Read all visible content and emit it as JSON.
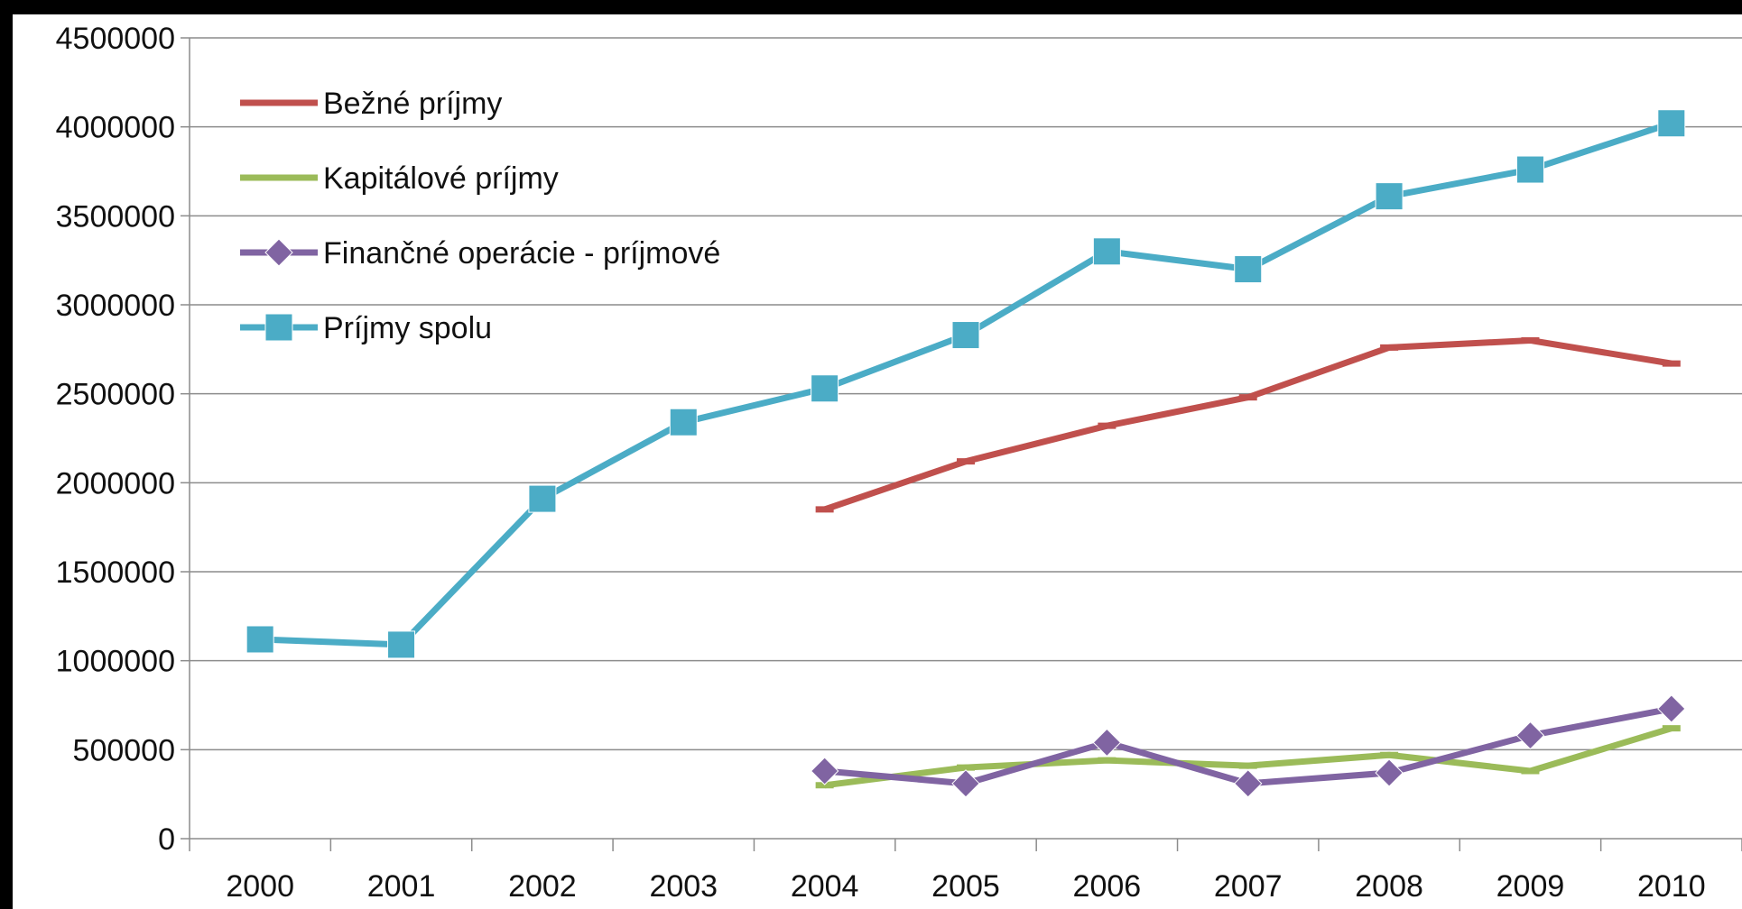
{
  "chart_data": {
    "type": "line",
    "title": "",
    "xlabel": "",
    "ylabel": "",
    "categories": [
      "2000",
      "2001",
      "2002",
      "2003",
      "2004",
      "2005",
      "2006",
      "2007",
      "2008",
      "2009",
      "2010"
    ],
    "ylim": [
      0,
      4500000
    ],
    "yticks": [
      0,
      500000,
      1000000,
      1500000,
      2000000,
      2500000,
      3000000,
      3500000,
      4000000,
      4500000
    ],
    "ytick_labels": [
      "0",
      "500000",
      "1000000",
      "1500000",
      "2000000",
      "2500000",
      "3000000",
      "3500000",
      "4000000",
      "4500000"
    ],
    "grid": true,
    "legend_position": "top-left",
    "series": [
      {
        "name": "Bežné príjmy",
        "color": "#C0504D",
        "marker": "none",
        "values": [
          null,
          null,
          null,
          null,
          1850000,
          2120000,
          2320000,
          2480000,
          2760000,
          2800000,
          2670000
        ]
      },
      {
        "name": "Kapitálové príjmy",
        "color": "#9BBB59",
        "marker": "none",
        "values": [
          null,
          null,
          null,
          null,
          300000,
          400000,
          440000,
          410000,
          470000,
          380000,
          620000
        ]
      },
      {
        "name": "Finančné operácie - príjmové",
        "color": "#8064A2",
        "marker": "diamond",
        "values": [
          null,
          null,
          null,
          null,
          380000,
          310000,
          540000,
          310000,
          370000,
          580000,
          730000
        ]
      },
      {
        "name": "Príjmy spolu",
        "color": "#4BACC6",
        "marker": "square",
        "values": [
          1120000,
          1090000,
          1910000,
          2340000,
          2530000,
          2830000,
          3300000,
          3200000,
          3610000,
          3760000,
          4020000
        ]
      }
    ]
  }
}
